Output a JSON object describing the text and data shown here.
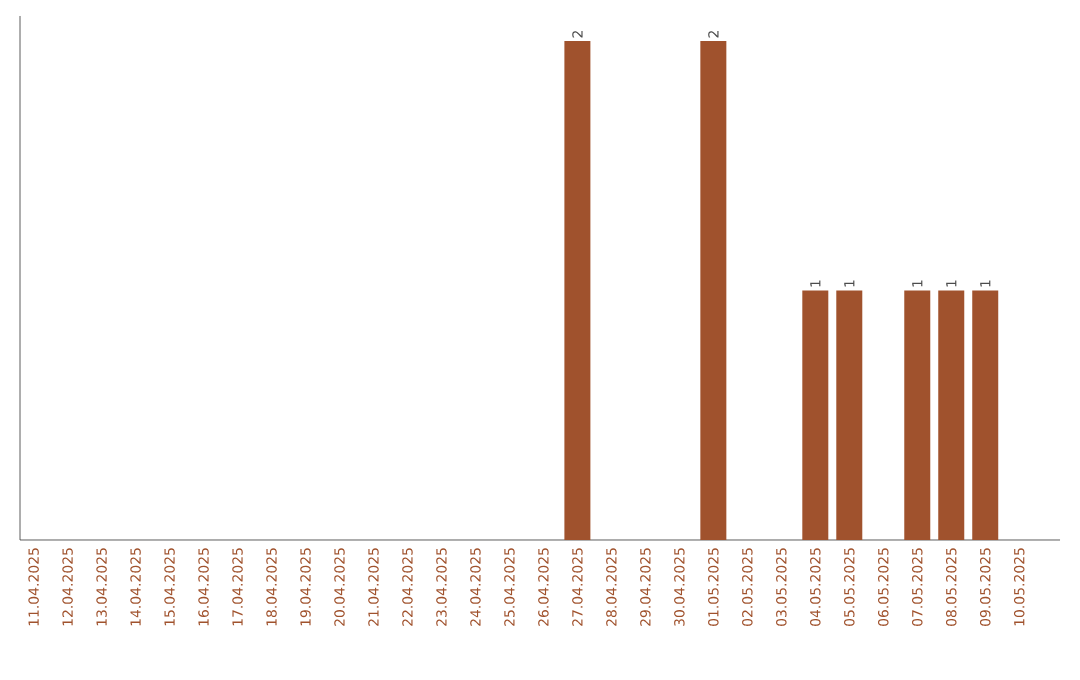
{
  "chart_data": {
    "type": "bar",
    "categories": [
      "11.04.2025",
      "12.04.2025",
      "13.04.2025",
      "14.04.2025",
      "15.04.2025",
      "16.04.2025",
      "17.04.2025",
      "18.04.2025",
      "19.04.2025",
      "20.04.2025",
      "21.04.2025",
      "22.04.2025",
      "23.04.2025",
      "24.04.2025",
      "25.04.2025",
      "26.04.2025",
      "27.04.2025",
      "28.04.2025",
      "29.04.2025",
      "30.04.2025",
      "01.05.2025",
      "02.05.2025",
      "03.05.2025",
      "04.05.2025",
      "05.05.2025",
      "06.05.2025",
      "07.05.2025",
      "08.05.2025",
      "09.05.2025",
      "10.05.2025"
    ],
    "values": [
      null,
      null,
      null,
      null,
      null,
      null,
      null,
      null,
      null,
      null,
      null,
      null,
      null,
      null,
      null,
      null,
      2,
      null,
      null,
      null,
      2,
      null,
      null,
      1,
      1,
      null,
      1,
      1,
      1,
      null
    ],
    "value_labels": [
      null,
      null,
      null,
      null,
      null,
      null,
      null,
      null,
      null,
      null,
      null,
      null,
      null,
      null,
      null,
      null,
      "2",
      null,
      null,
      null,
      "2",
      null,
      null,
      "1",
      "1",
      null,
      "1",
      "1",
      "1",
      null
    ],
    "color": "#a0522d",
    "tick_labels": "x",
    "grid": false
  }
}
